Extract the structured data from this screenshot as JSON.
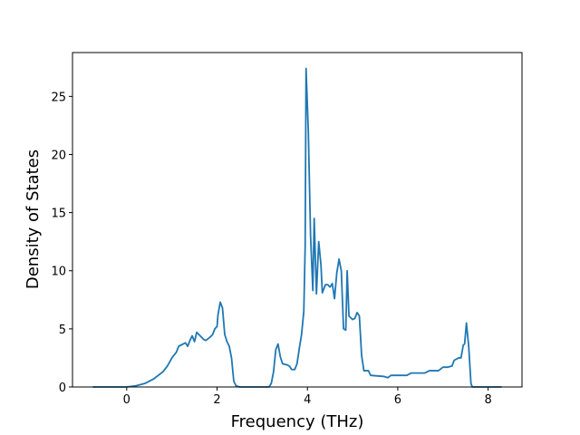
{
  "chart_data": {
    "type": "line",
    "xlabel": "Frequency (THz)",
    "ylabel": "Density of States",
    "xlim": [
      -1.2,
      8.75
    ],
    "ylim": [
      0,
      28.77
    ],
    "xticks": [
      0,
      2,
      4,
      6,
      8
    ],
    "yticks": [
      0,
      5,
      10,
      15,
      20,
      25
    ],
    "series": [
      {
        "color": "#1f77b4",
        "x": [
          -0.75,
          0,
          0.2,
          0.4,
          0.6,
          0.8,
          0.9,
          1.0,
          1.1,
          1.15,
          1.25,
          1.3,
          1.35,
          1.4,
          1.45,
          1.5,
          1.55,
          1.6,
          1.7,
          1.75,
          1.85,
          1.9,
          1.95,
          2.0,
          2.02,
          2.07,
          2.12,
          2.17,
          2.22,
          2.27,
          2.32,
          2.37,
          2.42,
          2.5,
          3.15,
          3.2,
          3.25,
          3.3,
          3.35,
          3.4,
          3.45,
          3.55,
          3.6,
          3.65,
          3.72,
          3.77,
          3.82,
          3.87,
          3.92,
          3.95,
          3.97,
          4.02,
          4.07,
          4.12,
          4.15,
          4.2,
          4.25,
          4.3,
          4.33,
          4.4,
          4.45,
          4.5,
          4.55,
          4.6,
          4.65,
          4.7,
          4.75,
          4.8,
          4.85,
          4.88,
          4.92,
          5.0,
          5.05,
          5.1,
          5.15,
          5.2,
          5.25,
          5.3,
          5.35,
          5.4,
          5.7,
          5.78,
          5.85,
          6.2,
          6.3,
          6.5,
          6.6,
          6.7,
          6.9,
          7.0,
          7.1,
          7.2,
          7.25,
          7.35,
          7.4,
          7.45,
          7.48,
          7.52,
          7.57,
          7.62,
          7.65,
          8.3
        ],
        "values": [
          0,
          0,
          0.1,
          0.3,
          0.7,
          1.3,
          1.8,
          2.5,
          3.0,
          3.5,
          3.7,
          3.8,
          3.5,
          4.0,
          4.4,
          3.9,
          4.7,
          4.5,
          4.1,
          4.0,
          4.3,
          4.5,
          5.0,
          5.2,
          6.2,
          7.3,
          6.8,
          4.5,
          3.9,
          3.5,
          2.5,
          0.5,
          0.1,
          0,
          0,
          0.3,
          1.3,
          3.2,
          3.7,
          2.6,
          2.0,
          1.9,
          1.8,
          1.5,
          1.5,
          2.0,
          3.3,
          4.5,
          6.5,
          12,
          27.4,
          22,
          13,
          8.3,
          14.5,
          8.0,
          12.5,
          10.5,
          8.1,
          8.8,
          8.8,
          8.6,
          8.9,
          7.6,
          9.8,
          11.0,
          10.0,
          5.0,
          4.9,
          10.0,
          6.1,
          5.8,
          5.9,
          6.4,
          6.1,
          2.7,
          1.4,
          1.4,
          1.4,
          1.0,
          0.9,
          0.8,
          1.0,
          1.0,
          1.2,
          1.2,
          1.2,
          1.4,
          1.4,
          1.7,
          1.7,
          1.8,
          2.3,
          2.5,
          2.5,
          3.6,
          3.7,
          5.5,
          3.5,
          0.3,
          0,
          0
        ]
      }
    ]
  }
}
